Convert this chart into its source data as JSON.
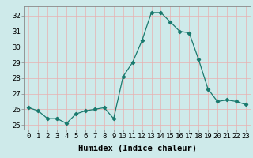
{
  "x": [
    0,
    1,
    2,
    3,
    4,
    5,
    6,
    7,
    8,
    9,
    10,
    11,
    12,
    13,
    14,
    15,
    16,
    17,
    18,
    19,
    20,
    21,
    22,
    23
  ],
  "y": [
    26.1,
    25.9,
    25.4,
    25.4,
    25.1,
    25.7,
    25.9,
    26.0,
    26.1,
    25.4,
    28.1,
    29.0,
    30.4,
    32.2,
    32.2,
    31.6,
    31.0,
    30.9,
    29.2,
    27.3,
    26.5,
    26.6,
    26.5,
    26.3
  ],
  "line_color": "#1a7a6e",
  "marker": "D",
  "marker_size": 2.2,
  "bg_color": "#ceeaea",
  "grid_color_major": "#f5c8c8",
  "grid_color_minor": "#e8f5f5",
  "xlabel": "Humidex (Indice chaleur)",
  "ylabel_ticks": [
    25,
    26,
    27,
    28,
    29,
    30,
    31,
    32
  ],
  "xlim": [
    -0.5,
    23.5
  ],
  "ylim": [
    24.7,
    32.6
  ],
  "xlabel_fontsize": 7.5,
  "tick_fontsize": 6.5,
  "spine_color": "#888888",
  "lw": 0.9
}
